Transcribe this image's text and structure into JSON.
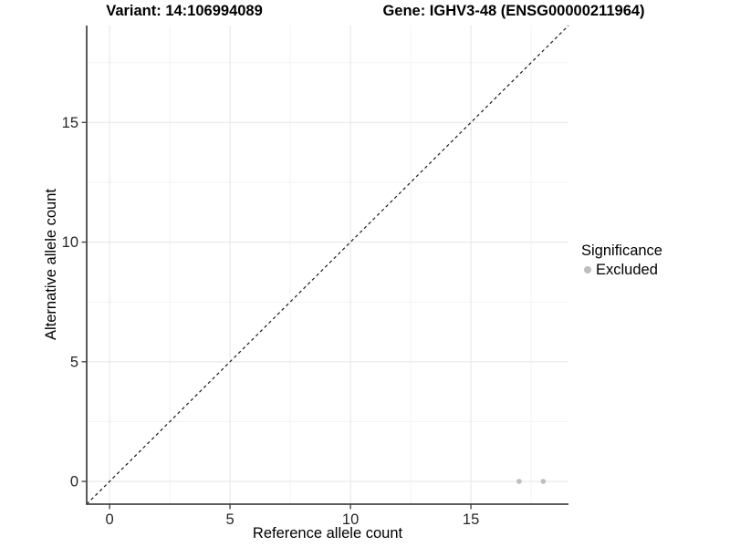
{
  "header": {
    "variant_title": "Variant: 14:106994089",
    "gene_title": "Gene: IGHV3-48 (ENSG00000211964)"
  },
  "legend": {
    "title": "Significance",
    "items": [
      {
        "label": "Excluded",
        "color": "#bdbdbd",
        "marker": "dot"
      }
    ]
  },
  "chart_data": {
    "type": "scatter",
    "xlabel": "Reference allele count",
    "ylabel": "Alternative allele count",
    "xlim": [
      -0.95,
      19.05
    ],
    "ylim": [
      -0.95,
      19.05
    ],
    "x_major_ticks": [
      0,
      5,
      10,
      15
    ],
    "y_major_ticks": [
      0,
      5,
      10,
      15
    ],
    "x_minor_ticks": [
      2.5,
      7.5,
      12.5,
      17.5
    ],
    "y_minor_ticks": [
      2.5,
      7.5,
      12.5,
      17.5
    ],
    "grid": true,
    "legend_position": "right",
    "series": [
      {
        "name": "Excluded",
        "color": "#bdbdbd",
        "points": [
          {
            "x": 17,
            "y": 0
          },
          {
            "x": 18,
            "y": 0
          }
        ]
      }
    ],
    "reference_line": {
      "type": "identity",
      "slope": 1,
      "intercept": 0,
      "style": "dashed",
      "color": "#1a1a1a"
    }
  },
  "colors": {
    "grid_major": "#e8e8e8",
    "grid_minor": "#f3f3f3",
    "axis_line": "#474747",
    "tick_text": "#262626",
    "point": "#bdbdbd"
  }
}
